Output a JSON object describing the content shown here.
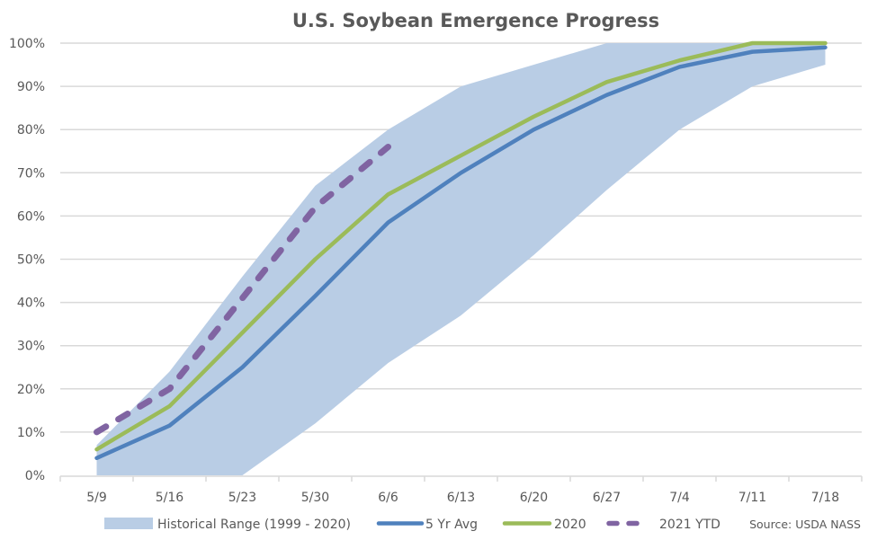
{
  "chart_data": {
    "type": "line",
    "title": "U.S. Soybean Emergence Progress",
    "xlabel": "",
    "ylabel": "",
    "categories": [
      "5/9",
      "5/16",
      "5/23",
      "5/30",
      "6/6",
      "6/13",
      "6/20",
      "6/27",
      "7/4",
      "7/11",
      "7/18"
    ],
    "ylim": [
      0,
      100
    ],
    "yticks": [
      0,
      10,
      20,
      30,
      40,
      50,
      60,
      70,
      80,
      90,
      100
    ],
    "ytick_labels": [
      "0%",
      "10%",
      "20%",
      "30%",
      "40%",
      "50%",
      "60%",
      "70%",
      "80%",
      "90%",
      "100%"
    ],
    "grid": true,
    "legend_position": "bottom",
    "range": {
      "name": "Historical Range (1999 - 2020)",
      "color": "#b9cde5",
      "upper": [
        7,
        24,
        46,
        67,
        80,
        90,
        95,
        100,
        100,
        100,
        100
      ],
      "lower": [
        0,
        0,
        0,
        12,
        26,
        37,
        51,
        66,
        80,
        90,
        95
      ]
    },
    "series": [
      {
        "name": "5 Yr Avg",
        "color": "#4f81bd",
        "dashed": false,
        "values": [
          4,
          11.5,
          25,
          41.5,
          58.5,
          70,
          80,
          88,
          94.5,
          98,
          99
        ]
      },
      {
        "name": "2020",
        "color": "#9bbb59",
        "dashed": false,
        "values": [
          6,
          16,
          33,
          50,
          65,
          74,
          83,
          91,
          96,
          100,
          100
        ]
      },
      {
        "name": "2021 YTD",
        "color": "#8064a2",
        "dashed": true,
        "values": [
          10,
          20,
          41,
          62,
          76,
          null,
          null,
          null,
          null,
          null,
          null
        ]
      }
    ],
    "source": "Source: USDA NASS"
  }
}
